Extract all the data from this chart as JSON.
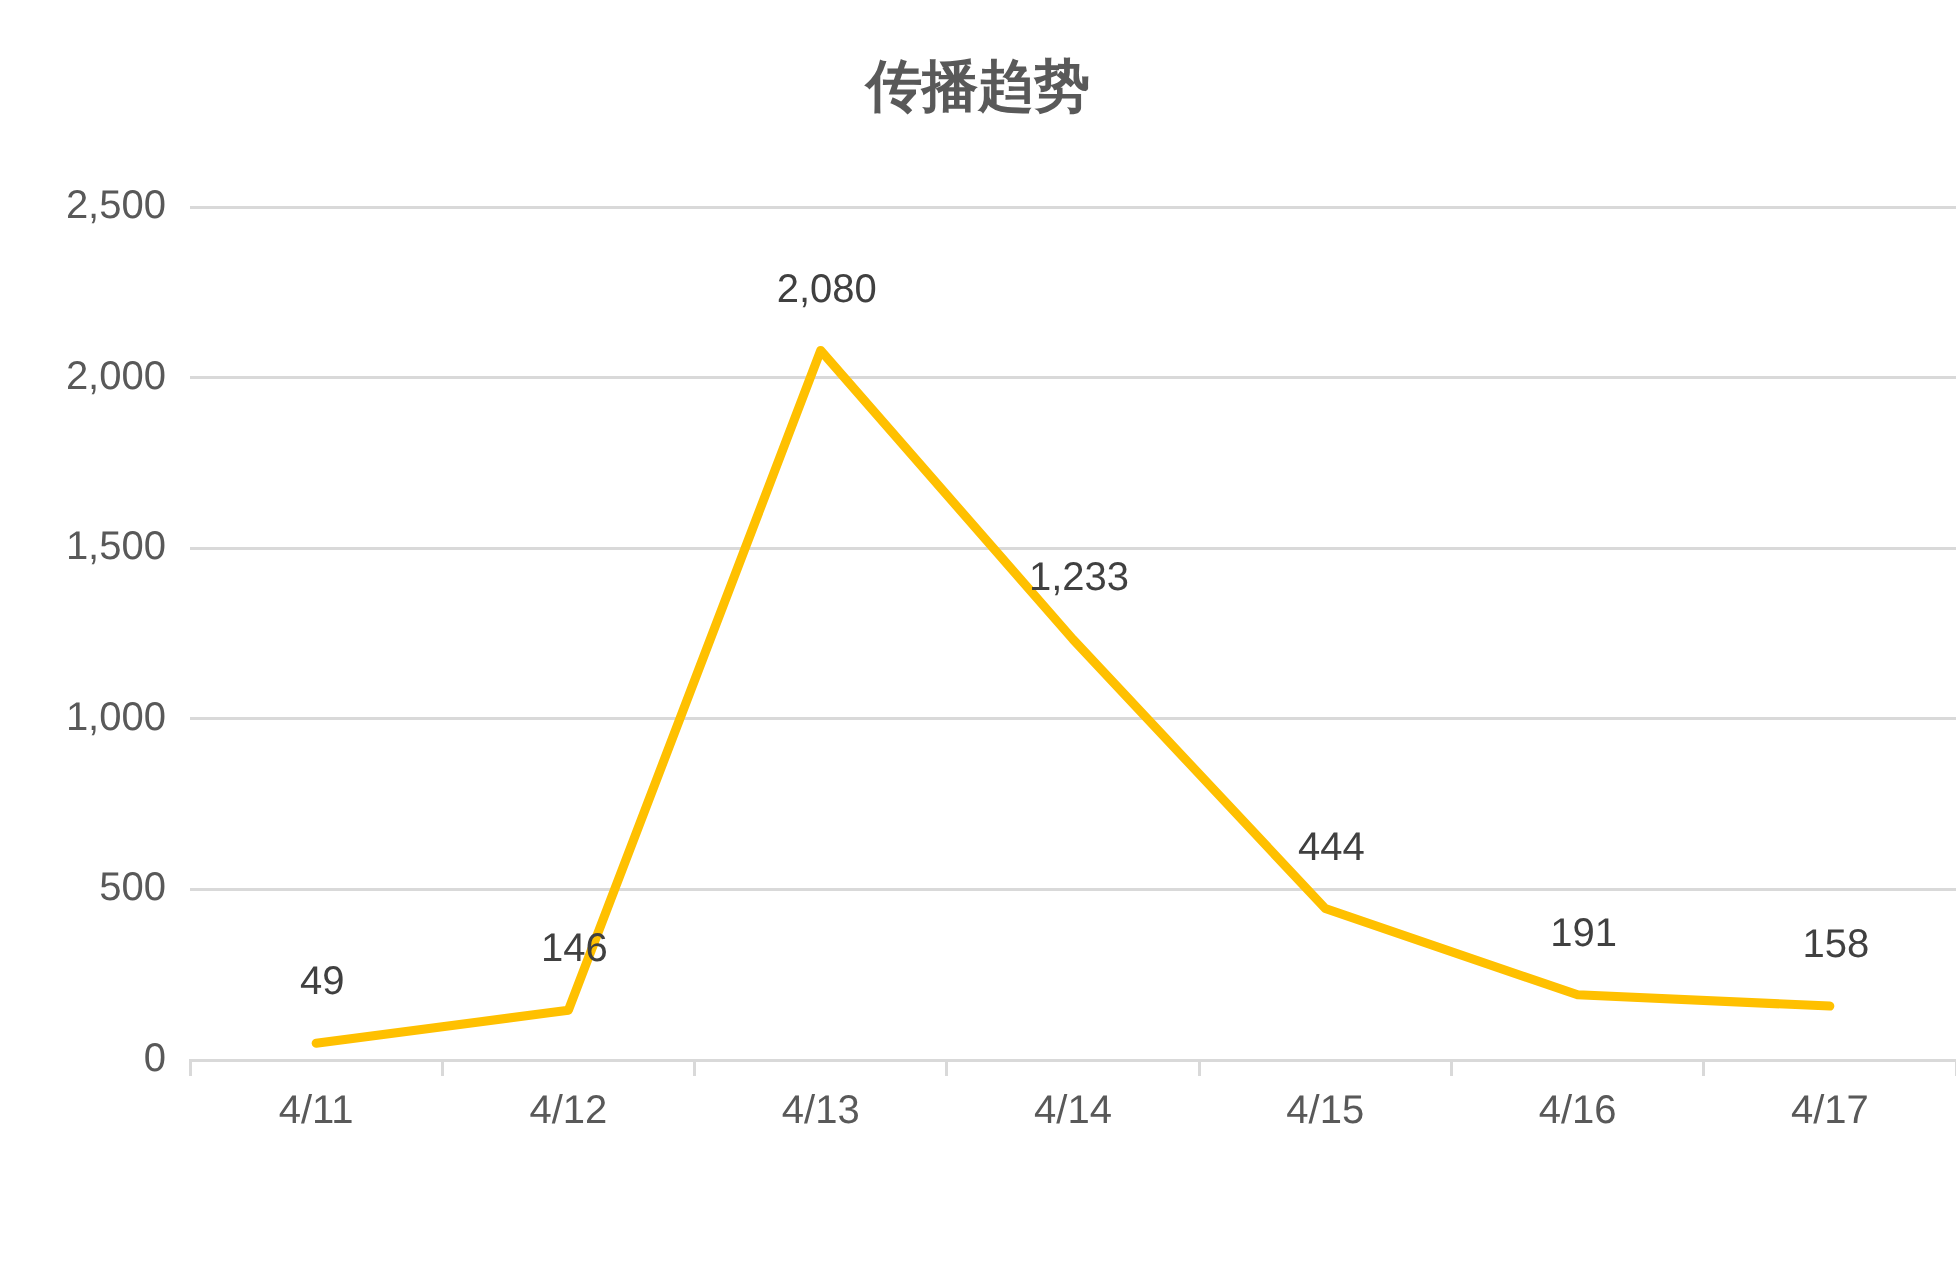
{
  "chart_data": {
    "type": "line",
    "title": "传播趋势",
    "categories": [
      "4/11",
      "4/12",
      "4/13",
      "4/14",
      "4/15",
      "4/16",
      "4/17"
    ],
    "series": [
      {
        "color": "#ffc000",
        "values": [
          49,
          146,
          2080,
          1233,
          444,
          191,
          158
        ],
        "value_labels": [
          "49",
          "146",
          "2,080",
          "1,233",
          "444",
          "191",
          "158"
        ]
      }
    ],
    "ylim": [
      0,
      2500
    ],
    "yticks": [
      {
        "value": 0,
        "label": "0"
      },
      {
        "value": 500,
        "label": "500"
      },
      {
        "value": 1000,
        "label": "1,000"
      },
      {
        "value": 1500,
        "label": "1,500"
      },
      {
        "value": 2000,
        "label": "2,000"
      },
      {
        "value": 2500,
        "label": "2,500"
      }
    ],
    "grid": "y",
    "legend": false,
    "marker": "none",
    "line_style": "solid"
  }
}
